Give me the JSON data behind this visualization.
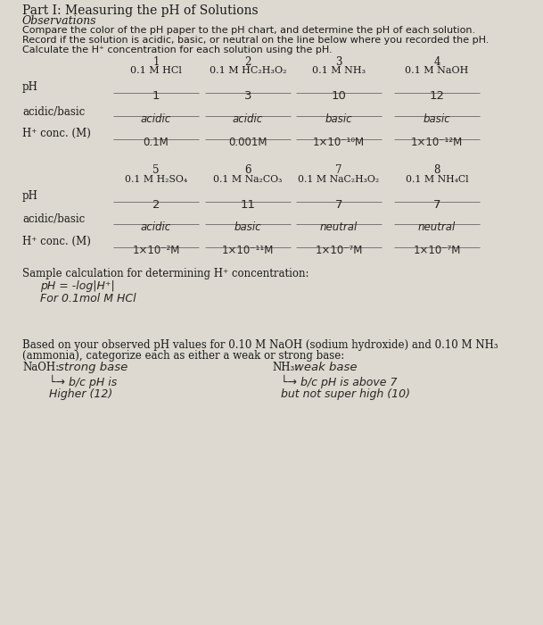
{
  "bg_color": "#ddd9d0",
  "title": "Part I: Measuring the pH of Solutions",
  "obs_label": "Observations",
  "obs_lines": [
    "Compare the color of the pH paper to the pH chart, and determine the pH of each solution.",
    "Record if the solution is acidic, basic, or neutral on the line below where you recorded the pH.",
    "Calculate the H⁺ concentration for each solution using the pH."
  ],
  "table1_col_nums": [
    "1",
    "2",
    "3",
    "4"
  ],
  "table1_col_labels": [
    "0.1 M HCl",
    "0.1 M HC₂H₃O₂",
    "0.1 M NH₃",
    "0.1 M NaOH"
  ],
  "row_label_pH": "pH",
  "table1_pH": [
    "1",
    "3",
    "10",
    "12"
  ],
  "row_label_acidic": "acidic/basic",
  "table1_acidic": [
    "acidic",
    "acidic",
    "basic",
    "basic"
  ],
  "row_label_Hconc": "H⁺ conc. (M)",
  "table1_Hconc": [
    "0.1M",
    "0.001M",
    "1×10⁻¹⁰M",
    "1×10⁻¹²M"
  ],
  "table2_col_nums": [
    "5",
    "6",
    "7",
    "8"
  ],
  "table2_col_labels": [
    "0.1 M H₂SO₄",
    "0.1 M Na₂CO₃",
    "0.1 M NaC₂H₃O₂",
    "0.1 M NH₄Cl"
  ],
  "table2_pH": [
    "2",
    "11",
    "7",
    "7"
  ],
  "table2_acidic": [
    "acidic",
    "basic",
    "neutral",
    "neutral"
  ],
  "table2_Hconc": [
    "1×10⁻²M",
    "1×10⁻¹¹M",
    "1×10⁻⁷M",
    "1×10⁻⁷M"
  ],
  "sample_calc_label": "Sample calculation for determining H⁺ concentration:",
  "sample_calc_line1": "pH = -log|H⁺|",
  "sample_calc_line2": "For 0.1mol M HCl",
  "naoh_question_line1": "Based on your observed pH values for 0.10 M NaOH (sodium hydroxide) and 0.10 M NH₃",
  "naoh_question_line2": "(ammonia), categorize each as either a weak or strong base:",
  "naoh_label": "NaOH:",
  "naoh_answer": "strong base",
  "naoh_reason1": "└→ b/c pH is",
  "naoh_reason2": "Higher (12)",
  "nh3_label": "NH₃:",
  "nh3_answer": "weak base",
  "nh3_reason1": "└→ b/c pH is above 7",
  "nh3_reason2": "but not super high (10)",
  "handwriting_color": "#2a2520",
  "print_color": "#1a1a1a",
  "line_color": "#777777"
}
